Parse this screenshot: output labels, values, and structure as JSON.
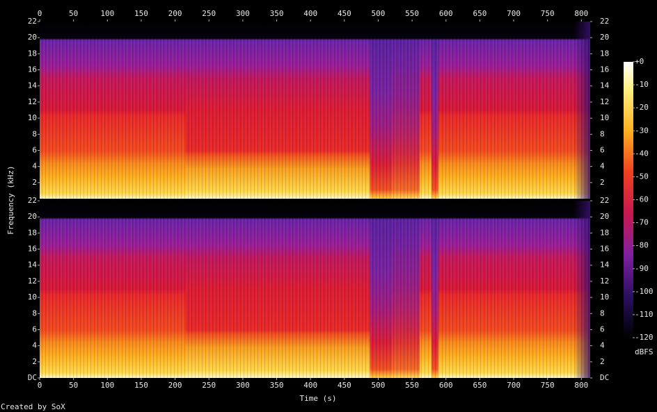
{
  "chart_data": [
    {
      "type": "spectrogram",
      "xlim": [
        0,
        813
      ],
      "xticks": [
        0,
        50,
        100,
        150,
        200,
        250,
        300,
        350,
        400,
        450,
        500,
        550,
        600,
        650,
        700,
        750,
        800
      ],
      "ylim": [
        0,
        22
      ],
      "yticks": [
        2,
        4,
        6,
        8,
        10,
        12,
        14,
        16,
        18,
        20,
        22
      ]
    },
    {
      "type": "spectrogram",
      "xlim": [
        0,
        813
      ],
      "xticks": [
        0,
        50,
        100,
        150,
        200,
        250,
        300,
        350,
        400,
        450,
        500,
        550,
        600,
        650,
        700,
        750,
        800
      ],
      "ylim": [
        0,
        22
      ],
      "yticks": [
        {
          "value": 0,
          "label": "DC"
        },
        2,
        4,
        6,
        8,
        10,
        12,
        14,
        16,
        18,
        20,
        22
      ]
    }
  ],
  "xlabel": "Time (s)",
  "ylabel": "Frequency (kHz)",
  "colorbar": {
    "label": "dBFS",
    "lim": [
      -120,
      0
    ],
    "ticks": [
      {
        "value": 0,
        "label": "+0"
      },
      -10,
      -20,
      -30,
      -40,
      -50,
      -60,
      -70,
      -80,
      -90,
      -100,
      -110,
      -120
    ]
  },
  "footer": "Created by SoX"
}
